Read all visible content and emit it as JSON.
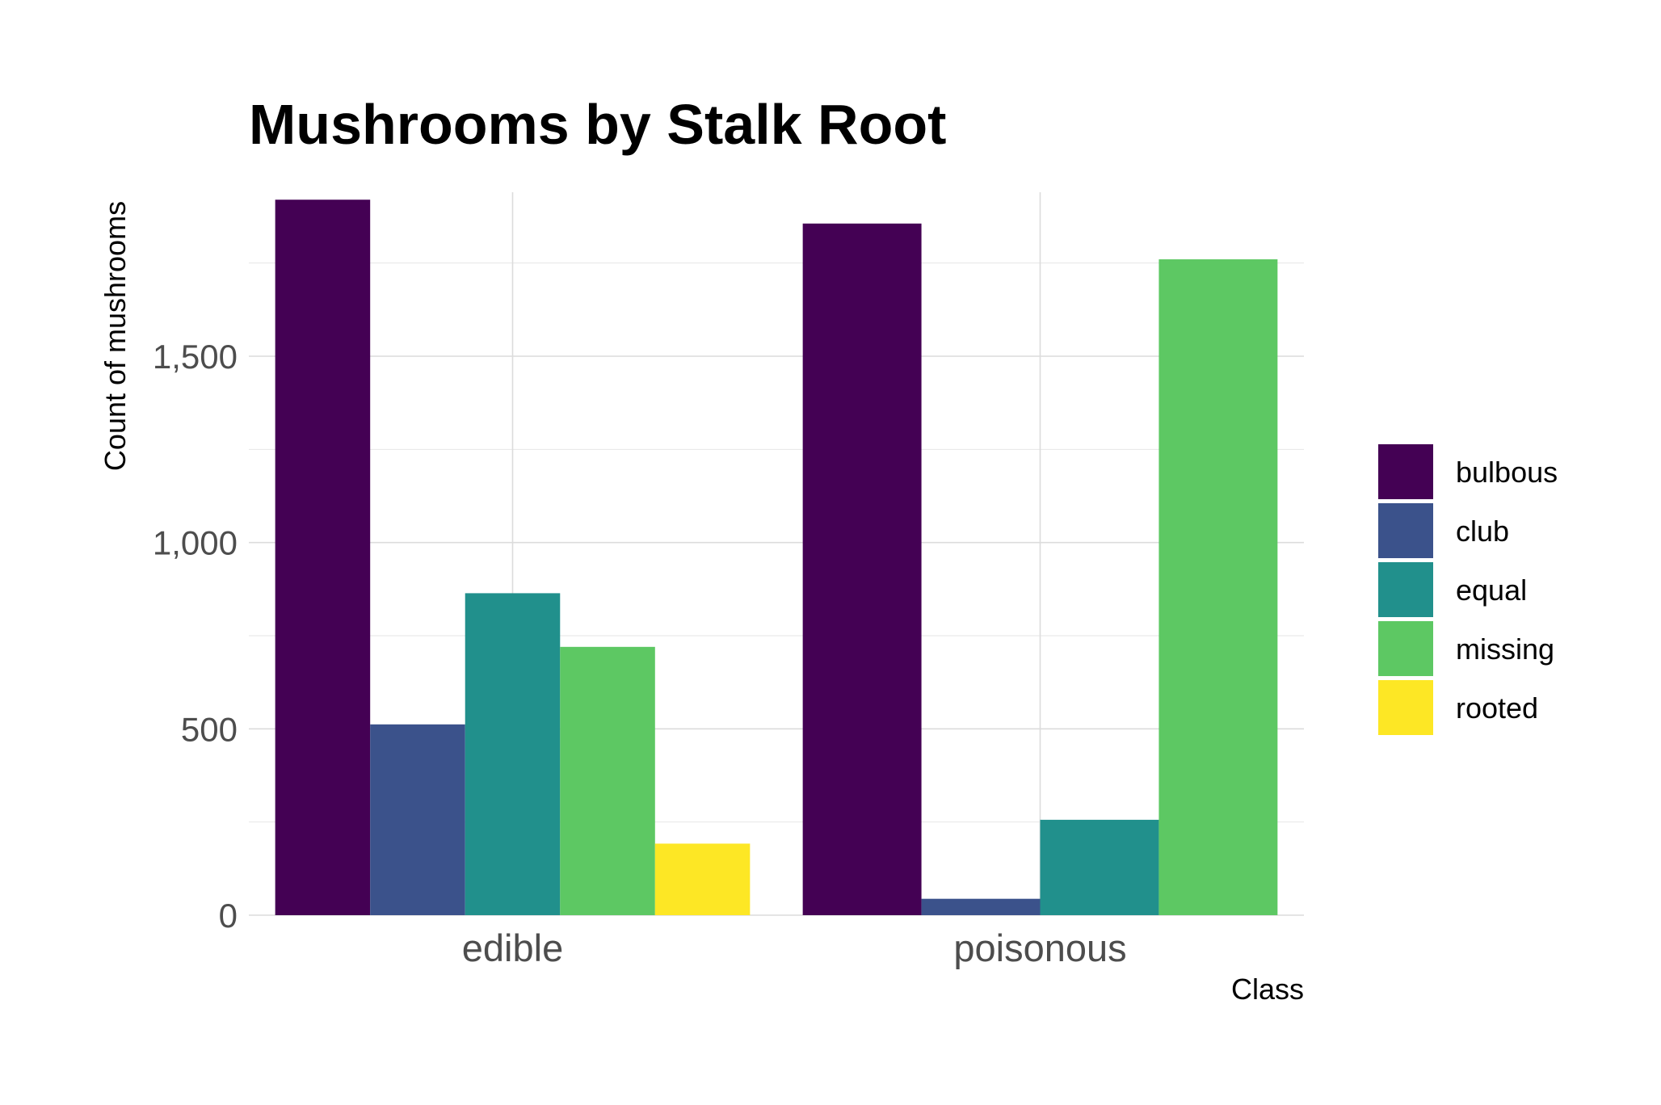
{
  "chart_data": {
    "type": "bar",
    "title": "Mushrooms by Stalk Root",
    "xlabel": "Class",
    "ylabel": "Count of mushrooms",
    "categories": [
      "edible",
      "poisonous"
    ],
    "series": [
      {
        "name": "bulbous",
        "color": "#440154",
        "values": [
          1920,
          1856
        ]
      },
      {
        "name": "club",
        "color": "#3B528B",
        "values": [
          512,
          44
        ]
      },
      {
        "name": "equal",
        "color": "#21908C",
        "values": [
          864,
          256
        ]
      },
      {
        "name": "missing",
        "color": "#5DC863",
        "values": [
          720,
          1760
        ]
      },
      {
        "name": "rooted",
        "color": "#FDE725",
        "values": [
          192,
          0
        ]
      }
    ],
    "ylim": [
      0,
      1940
    ],
    "yticks": [
      0,
      500,
      1000,
      1500
    ],
    "ytick_labels": [
      "0",
      "500",
      "1,000",
      "1,500"
    ],
    "grid": true,
    "legend_position": "right",
    "dodge": "preserve-single"
  }
}
